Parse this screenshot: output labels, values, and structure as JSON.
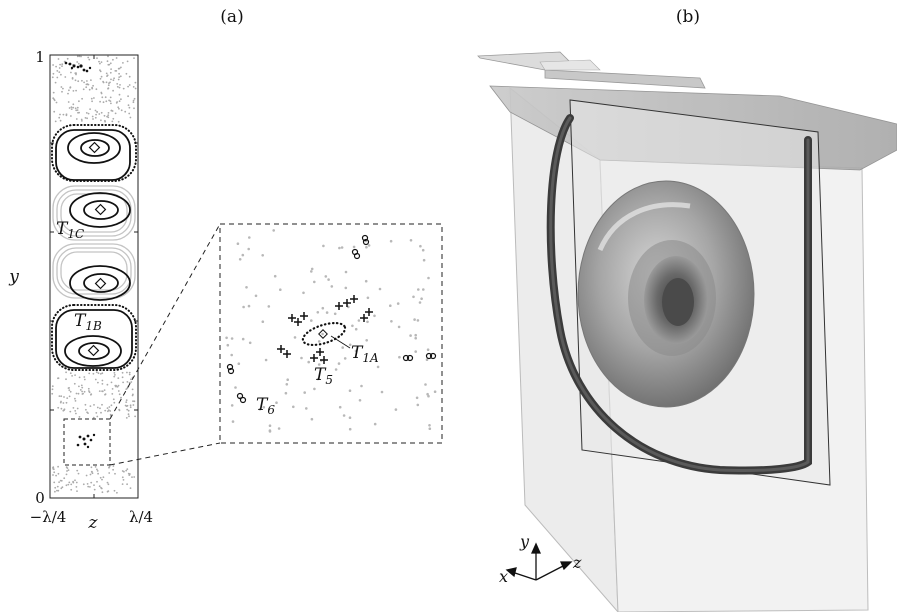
{
  "panel_a": {
    "label": "(a)",
    "y_axis": {
      "name": "y",
      "tick_top": "1",
      "tick_bottom": "0"
    },
    "z_axis": {
      "name": "z",
      "tick_left": "−λ/4",
      "tick_right": "λ/4"
    },
    "region_labels": {
      "t1c": {
        "base": "T",
        "sub": "1C"
      },
      "t1b": {
        "base": "T",
        "sub": "1B"
      }
    },
    "inset_labels": {
      "t1a": {
        "base": "T",
        "sub": "1A"
      },
      "t5": {
        "base": "T",
        "sub": "5"
      },
      "t6": {
        "base": "T",
        "sub": "6"
      }
    }
  },
  "panel_b": {
    "label": "(b)",
    "axes": {
      "y": "y",
      "x": "x",
      "z": "z"
    }
  },
  "colors": {
    "ink": "#111111",
    "chaos_dots": "#aaaaaa",
    "grey_orbits": "#c4c4c4",
    "box_fill": "#eeeeee",
    "lid_fill": "#bdbdbd",
    "torus": "#8f8f8f"
  }
}
